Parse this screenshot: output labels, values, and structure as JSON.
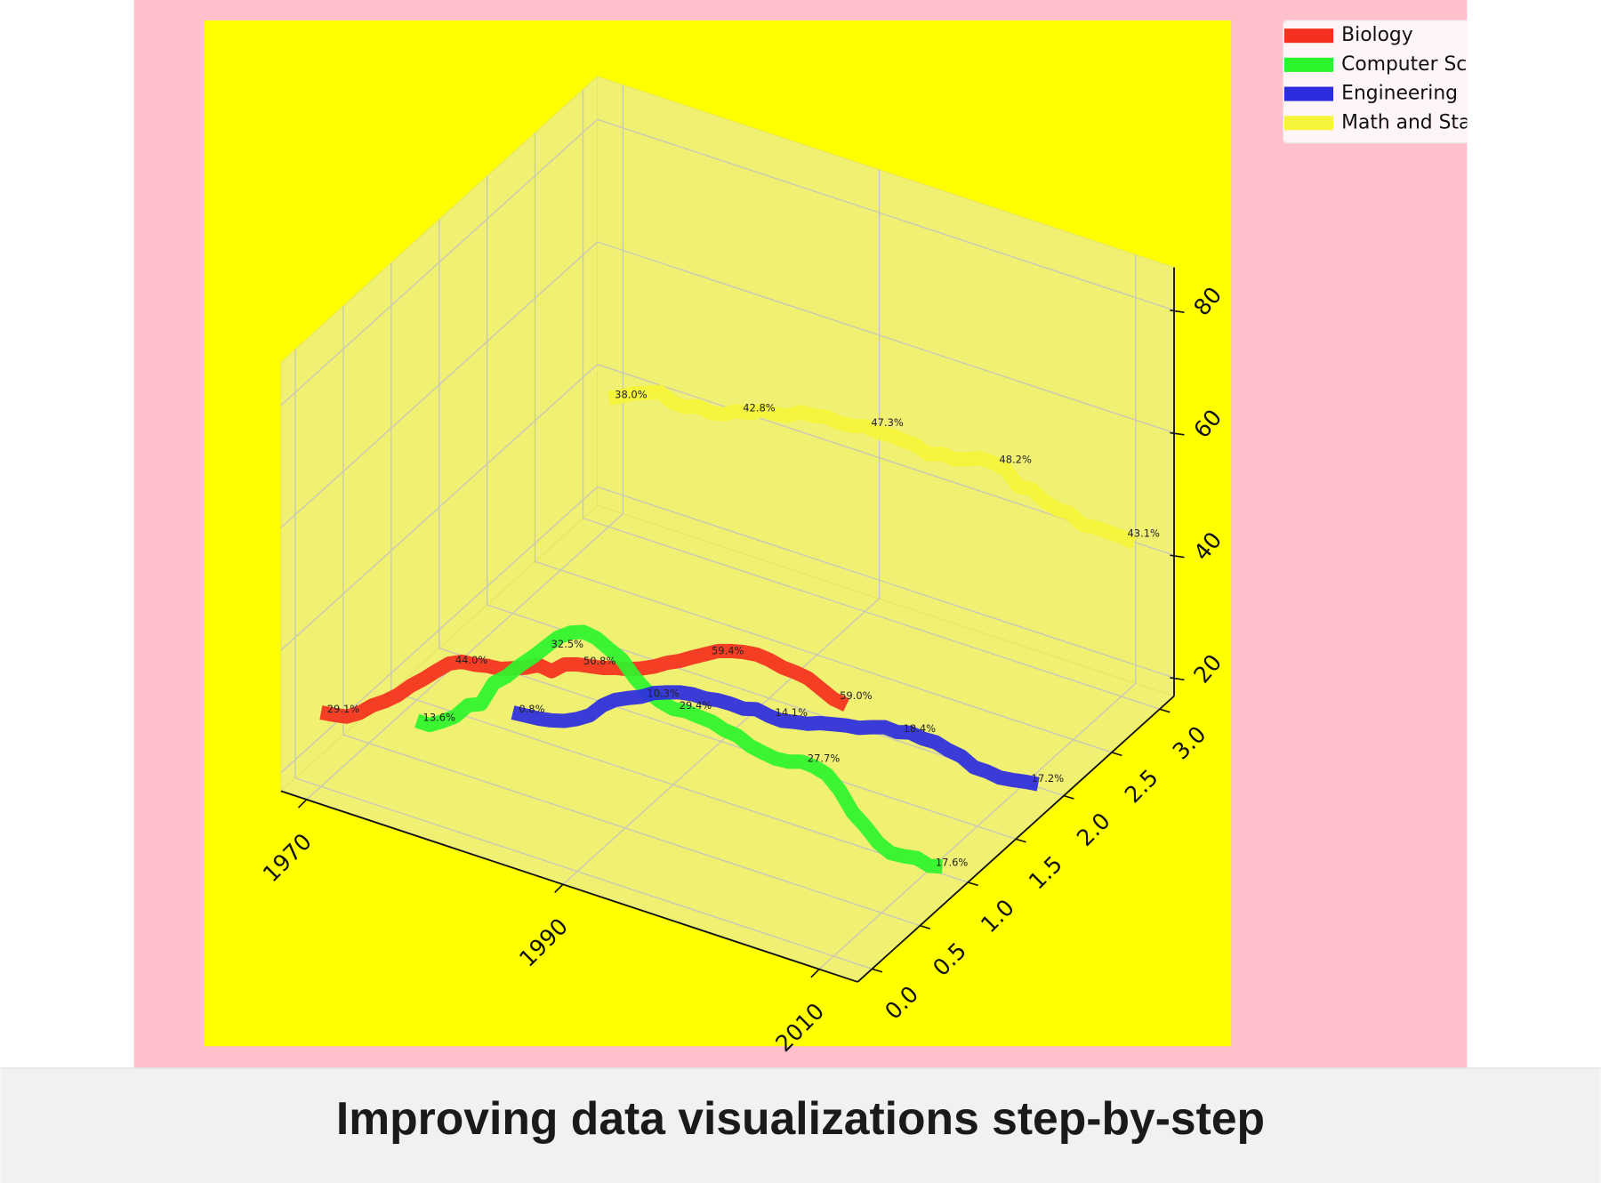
{
  "caption": "Improving data visualizations step-by-step",
  "chart_data": {
    "type": "line3d",
    "x": [
      1970,
      1971,
      1972,
      1973,
      1974,
      1975,
      1976,
      1977,
      1978,
      1979,
      1980,
      1981,
      1982,
      1983,
      1984,
      1985,
      1986,
      1987,
      1988,
      1989,
      1990,
      1991,
      1992,
      1993,
      1994,
      1995,
      1996,
      1997,
      1998,
      1999,
      2000,
      2001,
      2002,
      2003,
      2004,
      2005,
      2006,
      2007,
      2008,
      2009,
      2010,
      2011
    ],
    "series": [
      {
        "name": "Biology",
        "color": "#f5301e",
        "values": [
          29.1,
          29.4,
          29.8,
          31.1,
          33.0,
          34.4,
          36.1,
          38.3,
          40.1,
          42.1,
          44.0,
          45.0,
          45.2,
          45.7,
          45.9,
          46.7,
          47.5,
          48.6,
          48.3,
          50.1,
          50.8,
          51.2,
          51.6,
          52.3,
          52.8,
          53.6,
          54.6,
          55.9,
          56.9,
          58.2,
          59.4,
          60.6,
          61.3,
          61.8,
          62.1,
          61.9,
          61.4,
          61.3,
          61.0,
          60.0,
          59.0,
          58.7
        ],
        "value_labels": [
          "29.1%",
          null,
          null,
          null,
          null,
          null,
          null,
          null,
          null,
          null,
          "44.0%",
          null,
          null,
          null,
          null,
          null,
          null,
          null,
          null,
          null,
          "50.8%",
          null,
          null,
          null,
          null,
          null,
          null,
          null,
          null,
          null,
          "59.4%",
          null,
          null,
          null,
          null,
          null,
          null,
          null,
          null,
          null,
          "59.0%",
          null
        ]
      },
      {
        "name": "Computer Science",
        "color": "#2cf52c",
        "values": [
          13.6,
          13.6,
          14.9,
          16.4,
          18.9,
          19.8,
          23.9,
          25.7,
          28.1,
          30.2,
          32.5,
          34.8,
          36.3,
          37.1,
          36.8,
          35.7,
          34.7,
          32.4,
          30.8,
          29.9,
          29.4,
          29.7,
          29.5,
          29.4,
          28.7,
          28.5,
          27.5,
          27.1,
          26.8,
          27.0,
          27.7,
          27.6,
          27.0,
          25.1,
          22.2,
          20.6,
          18.6,
          17.6,
          17.8,
          18.2,
          17.6,
          18.2
        ],
        "value_labels": [
          "13.6%",
          null,
          null,
          null,
          null,
          null,
          null,
          null,
          null,
          null,
          "32.5%",
          null,
          null,
          null,
          null,
          null,
          null,
          null,
          null,
          null,
          "29.4%",
          null,
          null,
          null,
          null,
          null,
          null,
          null,
          null,
          null,
          "27.7%",
          null,
          null,
          null,
          null,
          null,
          null,
          null,
          null,
          null,
          "17.6%",
          null
        ]
      },
      {
        "name": "Engineering",
        "color": "#2b2be0",
        "values": [
          0.8,
          1.0,
          1.2,
          1.6,
          2.2,
          3.2,
          4.5,
          6.8,
          8.4,
          9.4,
          10.3,
          11.6,
          12.4,
          13.1,
          13.5,
          13.5,
          13.9,
          14.0,
          13.9,
          14.5,
          14.1,
          14.0,
          14.5,
          14.9,
          15.7,
          16.2,
          16.7,
          17.0,
          17.8,
          18.5,
          18.4,
          19.0,
          18.7,
          18.8,
          18.2,
          17.9,
          16.8,
          16.8,
          16.5,
          16.8,
          17.2,
          17.5
        ],
        "value_labels": [
          "0.8%",
          null,
          null,
          null,
          null,
          null,
          null,
          null,
          null,
          null,
          "10.3%",
          null,
          null,
          null,
          null,
          null,
          null,
          null,
          null,
          null,
          "14.1%",
          null,
          null,
          null,
          null,
          null,
          null,
          null,
          null,
          null,
          "18.4%",
          null,
          null,
          null,
          null,
          null,
          null,
          null,
          null,
          null,
          "17.2%",
          null
        ]
      },
      {
        "name": "Math and Statistics",
        "color": "#f5f53a",
        "values": [
          38.0,
          39.0,
          40.2,
          40.9,
          41.8,
          40.7,
          40.7,
          41.5,
          41.1,
          41.6,
          42.8,
          43.2,
          44.3,
          44.4,
          44.8,
          46.1,
          46.2,
          46.7,
          46.4,
          46.6,
          47.3,
          47.0,
          47.2,
          47.0,
          46.9,
          46.1,
          46.9,
          46.7,
          47.4,
          48.3,
          48.2,
          47.8,
          45.7,
          46.0,
          44.7,
          44.1,
          44.1,
          42.9,
          43.2,
          43.1,
          43.1,
          42.8
        ],
        "value_labels": [
          "38.0%",
          null,
          null,
          null,
          null,
          null,
          null,
          null,
          null,
          null,
          "42.8%",
          null,
          null,
          null,
          null,
          null,
          null,
          null,
          null,
          null,
          "47.3%",
          null,
          null,
          null,
          null,
          null,
          null,
          null,
          null,
          null,
          "48.2%",
          null,
          null,
          null,
          null,
          null,
          null,
          null,
          null,
          null,
          "43.1%",
          null
        ]
      }
    ],
    "xlim": [
      1968,
      2013
    ],
    "xticks": [
      1970,
      1990,
      2010
    ],
    "ylim": [
      -0.15,
      3.15
    ],
    "yticks": [
      {
        "value": 0,
        "label": "0.0"
      },
      {
        "value": 0.5,
        "label": "0.5"
      },
      {
        "value": 1,
        "label": "1.0"
      },
      {
        "value": 1.5,
        "label": "1.5"
      },
      {
        "value": 2,
        "label": "2.0"
      },
      {
        "value": 2.5,
        "label": "2.5"
      },
      {
        "value": 3,
        "label": "3.0"
      }
    ],
    "zlim": [
      17,
      87
    ],
    "zticks": [
      20,
      40,
      60,
      80
    ],
    "grid": true,
    "legend": "upper right"
  }
}
